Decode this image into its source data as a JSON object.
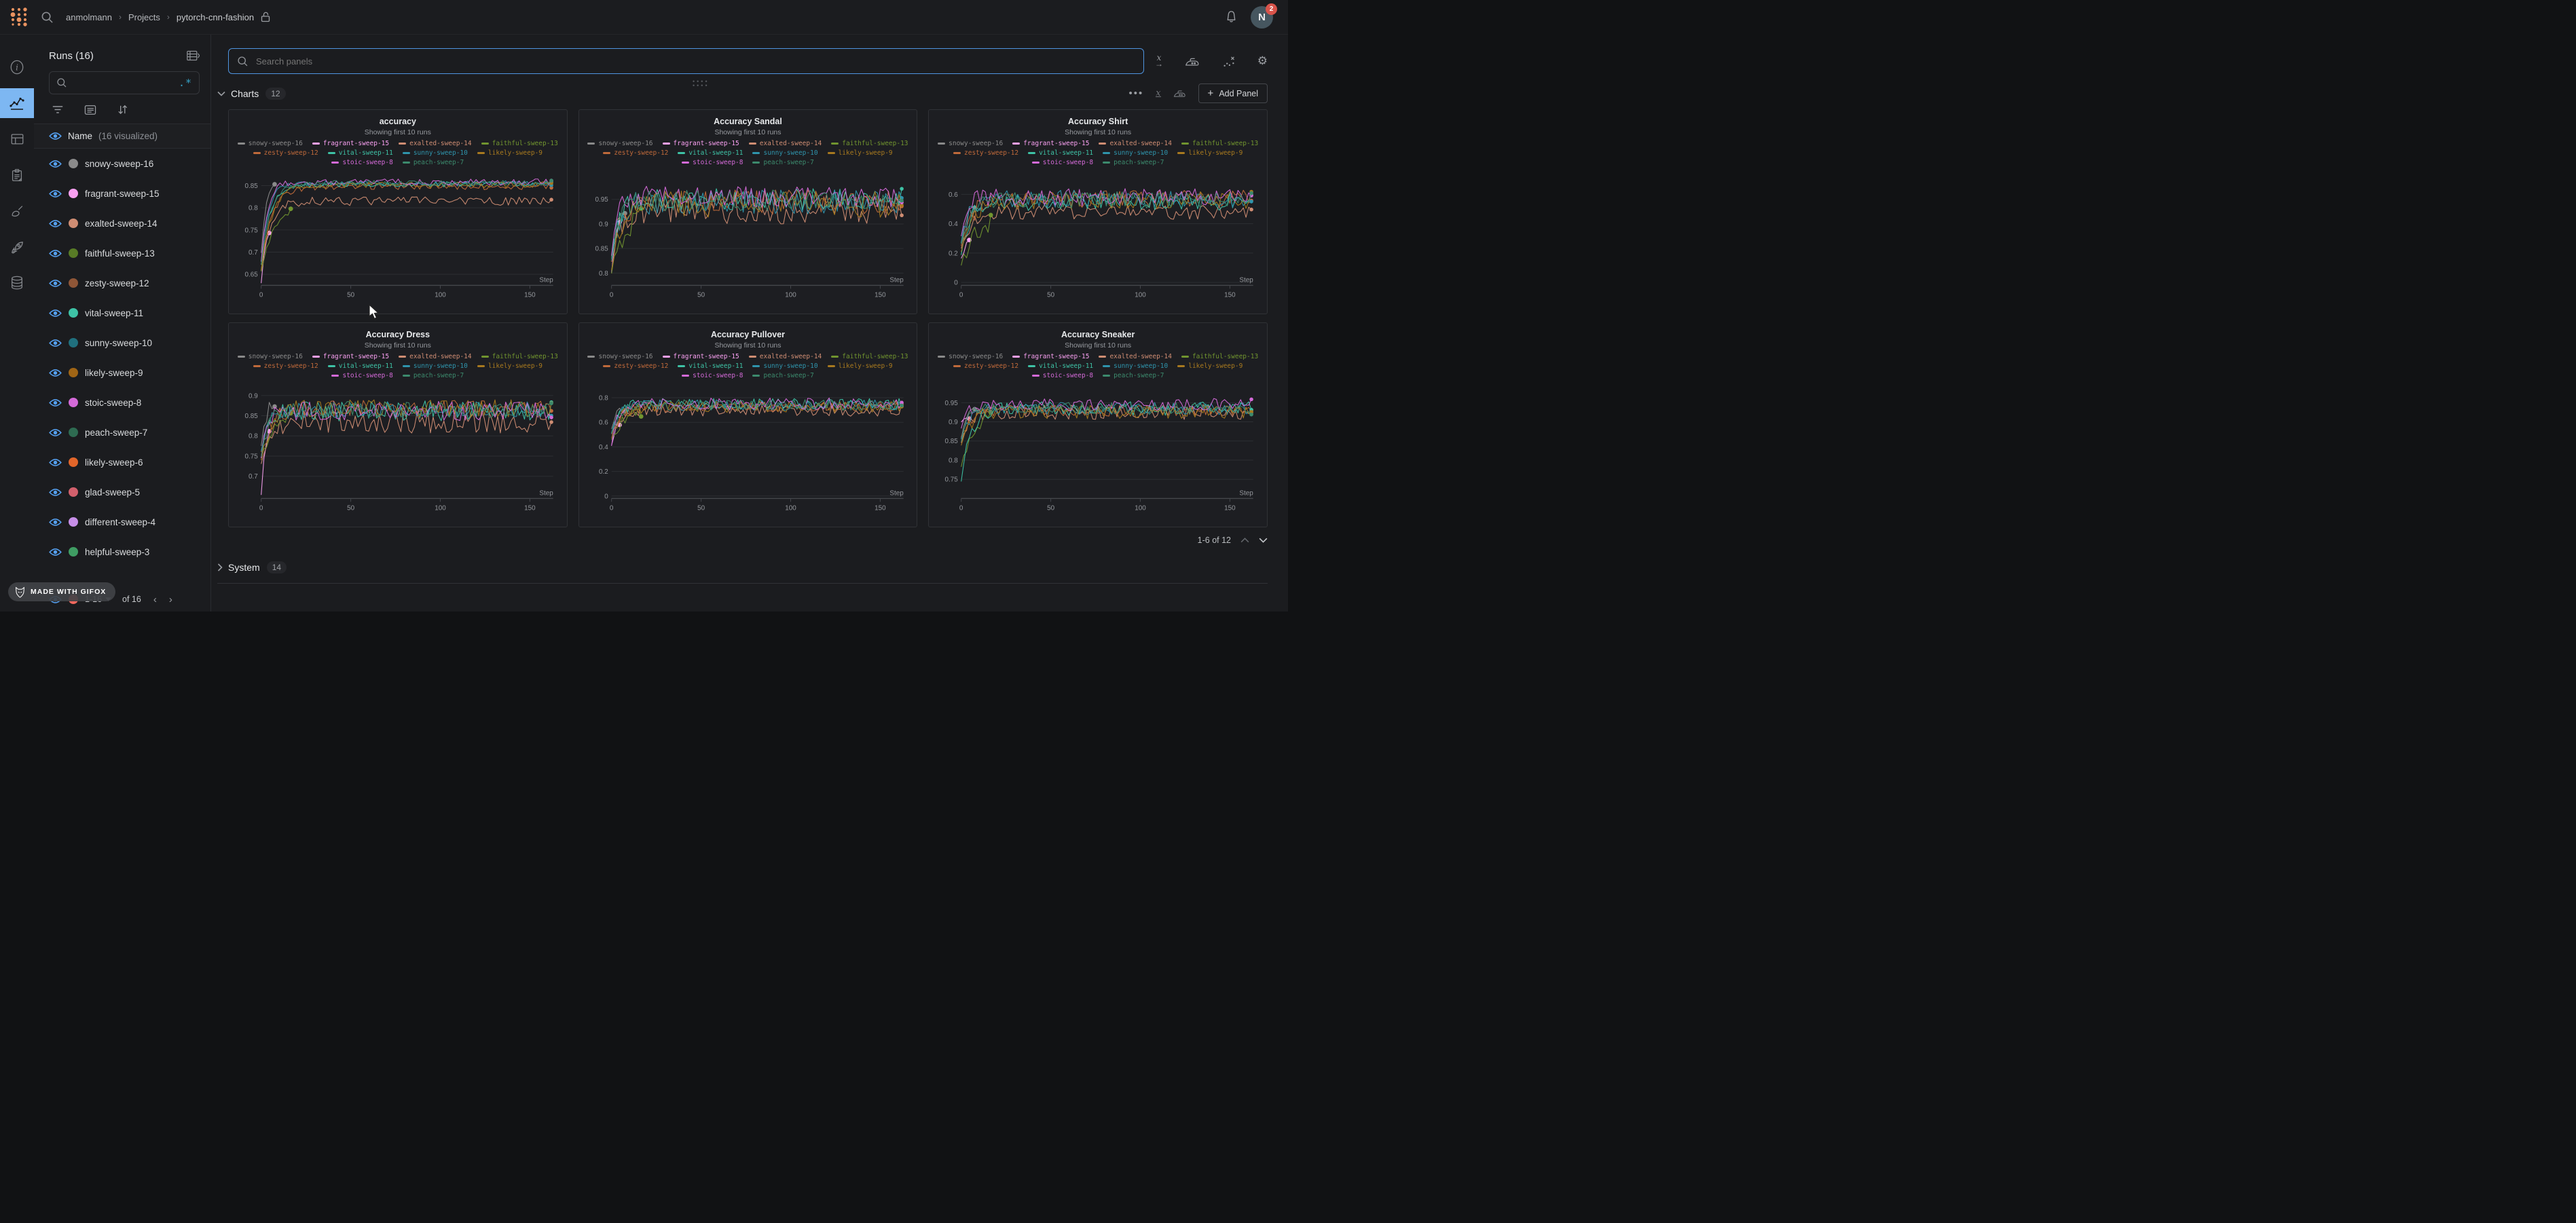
{
  "topbar": {
    "breadcrumb": {
      "user": "anmolmann",
      "section": "Projects",
      "project": "pytorch-cnn-fashion"
    },
    "avatar_initial": "N",
    "notification_count": "2"
  },
  "icon_rail": {
    "items": [
      "info",
      "line-chart",
      "table",
      "clipboard",
      "broom",
      "rocket",
      "database"
    ],
    "selected": "line-chart",
    "selected_bg": "#7db7f2"
  },
  "sidebar": {
    "title": "Runs (16)",
    "search_placeholder": "",
    "regex_icon": ".*",
    "name_header": {
      "label": "Name",
      "suffix": "(16 visualized)"
    },
    "runs": [
      {
        "name": "snowy-sweep-16",
        "color": "#8a8a8a"
      },
      {
        "name": "fragrant-sweep-15",
        "color": "#f9a0f1"
      },
      {
        "name": "exalted-sweep-14",
        "color": "#cf8d73"
      },
      {
        "name": "faithful-sweep-13",
        "color": "#587b26"
      },
      {
        "name": "zesty-sweep-12",
        "color": "#8f5637"
      },
      {
        "name": "vital-sweep-11",
        "color": "#3ec3a6"
      },
      {
        "name": "sunny-sweep-10",
        "color": "#20707e"
      },
      {
        "name": "likely-sweep-9",
        "color": "#a06515"
      },
      {
        "name": "stoic-sweep-8",
        "color": "#d46ad8"
      },
      {
        "name": "peach-sweep-7",
        "color": "#2e6b51"
      },
      {
        "name": "likely-sweep-6",
        "color": "#e2662a"
      },
      {
        "name": "glad-sweep-5",
        "color": "#d2606c"
      },
      {
        "name": "different-sweep-4",
        "color": "#c78fe8"
      },
      {
        "name": "helpful-sweep-3",
        "color": "#3f9d63"
      }
    ],
    "partial_run_color": "#f5685e",
    "pagination": {
      "range": "1-16",
      "of_label": "of 16"
    }
  },
  "main": {
    "search_placeholder": "Search panels",
    "charts_section": {
      "label": "Charts",
      "count": "12"
    },
    "add_panel_label": "Add Panel",
    "more_menu": "•••",
    "grid_pagination": "1-6 of 12",
    "system_section": {
      "label": "System",
      "count": "14"
    }
  },
  "gifox_badge": "MADE WITH GIFOX",
  "colors": {
    "accent_blue": "#7db7f2",
    "eye_blue": "#55a0f0",
    "search_focus_border": "#4f94e0",
    "badge_red": "#d9534a",
    "panel_bg": "#1d1e22",
    "gridline": "#2d2f33"
  },
  "chart_data": {
    "type": "line",
    "x_label": "Step",
    "x_ticks": [
      0,
      50,
      100,
      150
    ],
    "x_max": 163,
    "subtitle": "Showing first 10 runs",
    "runs": [
      {
        "name": "snowy-sweep-16",
        "color": "#8a8a8a",
        "end": 8
      },
      {
        "name": "fragrant-sweep-15",
        "color": "#f9a0f1",
        "end": 5
      },
      {
        "name": "exalted-sweep-14",
        "color": "#cf8d73"
      },
      {
        "name": "faithful-sweep-13",
        "color": "#71952f",
        "end": 17
      },
      {
        "name": "zesty-sweep-12",
        "color": "#c06a3b"
      },
      {
        "name": "vital-sweep-11",
        "color": "#3ec3a6"
      },
      {
        "name": "sunny-sweep-10",
        "color": "#2f95ad"
      },
      {
        "name": "likely-sweep-9",
        "color": "#a87a1f"
      },
      {
        "name": "stoic-sweep-8",
        "color": "#d46ad8"
      },
      {
        "name": "peach-sweep-7",
        "color": "#3c8a6d"
      }
    ],
    "panels": [
      {
        "title": "accuracy",
        "y_ticks": [
          0.85,
          0.8,
          0.75,
          0.7,
          0.65
        ],
        "y_min": 0.625,
        "y_max": 0.88,
        "series": [
          {
            "start": 0.7,
            "plateau": 0.868,
            "noise": 0.006,
            "tau": 3
          },
          {
            "start": 0.63,
            "plateau": 0.757,
            "noise": 0.004,
            "tau": 2.2
          },
          {
            "start": 0.66,
            "plateau": 0.815,
            "noise": 0.01,
            "tau": 5
          },
          {
            "start": 0.655,
            "plateau": 0.807,
            "noise": 0.006,
            "tau": 7
          },
          {
            "start": 0.67,
            "plateau": 0.848,
            "noise": 0.007,
            "tau": 6
          },
          {
            "start": 0.67,
            "plateau": 0.853,
            "noise": 0.006,
            "tau": 5
          },
          {
            "start": 0.68,
            "plateau": 0.855,
            "noise": 0.006,
            "tau": 4
          },
          {
            "start": 0.66,
            "plateau": 0.852,
            "noise": 0.007,
            "tau": 6
          },
          {
            "start": 0.68,
            "plateau": 0.858,
            "noise": 0.007,
            "tau": 3.5
          },
          {
            "start": 0.67,
            "plateau": 0.856,
            "noise": 0.006,
            "tau": 5
          }
        ]
      },
      {
        "title": "Accuracy Sandal",
        "y_ticks": [
          0.95,
          0.9,
          0.85,
          0.8
        ],
        "y_min": 0.775,
        "y_max": 1.005,
        "series": [
          {
            "start": 0.83,
            "plateau": 0.93,
            "noise": 0.02,
            "tau": 3
          },
          {
            "start": 0.8,
            "plateau": 0.9,
            "noise": 0.015,
            "tau": 2
          },
          {
            "start": 0.82,
            "plateau": 0.93,
            "noise": 0.03,
            "tau": 4
          },
          {
            "start": 0.8,
            "plateau": 0.92,
            "noise": 0.025,
            "tau": 6
          },
          {
            "start": 0.82,
            "plateau": 0.945,
            "noise": 0.025,
            "tau": 5
          },
          {
            "start": 0.83,
            "plateau": 0.95,
            "noise": 0.022,
            "tau": 4
          },
          {
            "start": 0.82,
            "plateau": 0.945,
            "noise": 0.025,
            "tau": 4
          },
          {
            "start": 0.8,
            "plateau": 0.94,
            "noise": 0.028,
            "tau": 5
          },
          {
            "start": 0.83,
            "plateau": 0.955,
            "noise": 0.022,
            "tau": 3
          },
          {
            "start": 0.82,
            "plateau": 0.948,
            "noise": 0.022,
            "tau": 4
          }
        ]
      },
      {
        "title": "Accuracy Shirt",
        "y_ticks": [
          0.6,
          0.4,
          0.2,
          0
        ],
        "y_min": -0.02,
        "y_max": 0.75,
        "series": [
          {
            "start": 0.25,
            "plateau": 0.62,
            "noise": 0.09,
            "tau": 4
          },
          {
            "start": 0.15,
            "plateau": 0.3,
            "noise": 0.05,
            "tau": 2.5
          },
          {
            "start": 0.22,
            "plateau": 0.48,
            "noise": 0.05,
            "tau": 5
          },
          {
            "start": 0.12,
            "plateau": 0.45,
            "noise": 0.06,
            "tau": 8
          },
          {
            "start": 0.25,
            "plateau": 0.57,
            "noise": 0.06,
            "tau": 6
          },
          {
            "start": 0.2,
            "plateau": 0.55,
            "noise": 0.06,
            "tau": 5
          },
          {
            "start": 0.28,
            "plateau": 0.57,
            "noise": 0.06,
            "tau": 4
          },
          {
            "start": 0.22,
            "plateau": 0.56,
            "noise": 0.06,
            "tau": 6
          },
          {
            "start": 0.3,
            "plateau": 0.58,
            "noise": 0.06,
            "tau": 3
          },
          {
            "start": 0.25,
            "plateau": 0.56,
            "noise": 0.06,
            "tau": 5
          }
        ]
      },
      {
        "title": "Accuracy Dress",
        "y_ticks": [
          0.9,
          0.85,
          0.8,
          0.75,
          0.7
        ],
        "y_min": 0.645,
        "y_max": 0.925,
        "series": [
          {
            "start": 0.78,
            "plateau": 0.895,
            "noise": 0.018,
            "tau": 3
          },
          {
            "start": 0.655,
            "plateau": 0.85,
            "noise": 0.02,
            "tau": 2.5
          },
          {
            "start": 0.73,
            "plateau": 0.835,
            "noise": 0.028,
            "tau": 4
          },
          {
            "start": 0.74,
            "plateau": 0.85,
            "noise": 0.02,
            "tau": 6
          },
          {
            "start": 0.76,
            "plateau": 0.868,
            "noise": 0.02,
            "tau": 5
          },
          {
            "start": 0.75,
            "plateau": 0.862,
            "noise": 0.025,
            "tau": 4
          },
          {
            "start": 0.76,
            "plateau": 0.865,
            "noise": 0.02,
            "tau": 4
          },
          {
            "start": 0.74,
            "plateau": 0.868,
            "noise": 0.022,
            "tau": 5
          },
          {
            "start": 0.75,
            "plateau": 0.862,
            "noise": 0.025,
            "tau": 3
          },
          {
            "start": 0.75,
            "plateau": 0.865,
            "noise": 0.02,
            "tau": 4
          }
        ]
      },
      {
        "title": "Accuracy Pullover",
        "y_ticks": [
          0.8,
          0.6,
          0.4,
          0.2,
          0
        ],
        "y_min": -0.02,
        "y_max": 0.9,
        "series": [
          {
            "start": 0.55,
            "plateau": 0.73,
            "noise": 0.04,
            "tau": 3
          },
          {
            "start": 0.4,
            "plateau": 0.62,
            "noise": 0.05,
            "tau": 2.5
          },
          {
            "start": 0.5,
            "plateau": 0.7,
            "noise": 0.05,
            "tau": 4
          },
          {
            "start": 0.45,
            "plateau": 0.7,
            "noise": 0.045,
            "tau": 6
          },
          {
            "start": 0.5,
            "plateau": 0.73,
            "noise": 0.045,
            "tau": 5
          },
          {
            "start": 0.52,
            "plateau": 0.75,
            "noise": 0.045,
            "tau": 4
          },
          {
            "start": 0.52,
            "plateau": 0.74,
            "noise": 0.045,
            "tau": 4
          },
          {
            "start": 0.48,
            "plateau": 0.73,
            "noise": 0.05,
            "tau": 5
          },
          {
            "start": 0.42,
            "plateau": 0.75,
            "noise": 0.05,
            "tau": 3
          },
          {
            "start": 0.5,
            "plateau": 0.74,
            "noise": 0.045,
            "tau": 4
          }
        ]
      },
      {
        "title": "Accuracy Sneaker",
        "y_ticks": [
          0.95,
          0.9,
          0.85,
          0.8,
          0.75
        ],
        "y_min": 0.7,
        "y_max": 0.995,
        "series": [
          {
            "start": 0.86,
            "plateau": 0.935,
            "noise": 0.012,
            "tau": 3
          },
          {
            "start": 0.9,
            "plateau": 0.915,
            "noise": 0.01,
            "tau": 2
          },
          {
            "start": 0.85,
            "plateau": 0.925,
            "noise": 0.02,
            "tau": 4
          },
          {
            "start": 0.78,
            "plateau": 0.92,
            "noise": 0.015,
            "tau": 6
          },
          {
            "start": 0.86,
            "plateau": 0.93,
            "noise": 0.015,
            "tau": 5
          },
          {
            "start": 0.74,
            "plateau": 0.935,
            "noise": 0.018,
            "tau": 5
          },
          {
            "start": 0.85,
            "plateau": 0.935,
            "noise": 0.016,
            "tau": 4
          },
          {
            "start": 0.84,
            "plateau": 0.925,
            "noise": 0.018,
            "tau": 5
          },
          {
            "start": 0.88,
            "plateau": 0.945,
            "noise": 0.016,
            "tau": 3
          },
          {
            "start": 0.85,
            "plateau": 0.935,
            "noise": 0.016,
            "tau": 4
          }
        ]
      }
    ]
  }
}
